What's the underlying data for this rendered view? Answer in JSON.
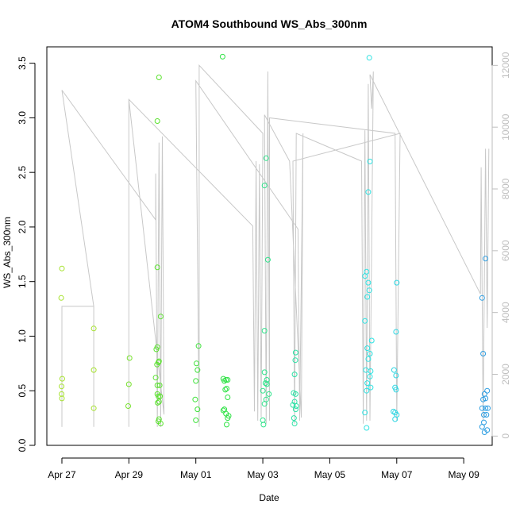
{
  "chart_data": {
    "type": "scatter",
    "title": "ATOM4 Southbound WS_Abs_300nm",
    "xlabel": "Date",
    "ylabel": "WS_Abs_300nm",
    "x_tick_labels": [
      "Apr 27",
      "Apr 29",
      "May 01",
      "May 03",
      "May 05",
      "May 07",
      "May 09"
    ],
    "x_ticks_day": [
      0,
      2,
      4,
      6,
      8,
      10,
      12
    ],
    "x_axis_unit": "days since Apr 27",
    "xlim": [
      -0.45,
      12.85
    ],
    "ylim": [
      0,
      3.65
    ],
    "y_ticks": [
      0.0,
      0.5,
      1.0,
      1.5,
      2.0,
      2.5,
      3.0,
      3.5
    ],
    "y_tick_labels": [
      "0.0",
      "0.5",
      "1.0",
      "1.5",
      "2.0",
      "2.5",
      "3.0",
      "3.5"
    ],
    "right_axis": {
      "ylim": [
        -300,
        12600
      ],
      "ticks": [
        0,
        2000,
        4000,
        6000,
        8000,
        10000,
        12000
      ],
      "tick_labels": [
        "0",
        "2000",
        "4000",
        "6000",
        "8000",
        "10000",
        "12000"
      ],
      "color": "#bebebe"
    },
    "points_day_value": [
      [
        0.0,
        1.62,
        "#a6e22e"
      ],
      [
        -0.02,
        1.35,
        "#a6e22e"
      ],
      [
        0.01,
        0.61,
        "#a6e22e"
      ],
      [
        -0.01,
        0.54,
        "#a6e22e"
      ],
      [
        -0.01,
        0.47,
        "#a6e22e"
      ],
      [
        0.0,
        0.43,
        "#a6e22e"
      ],
      [
        0.95,
        1.07,
        "#a6e22e"
      ],
      [
        0.95,
        0.69,
        "#a6e22e"
      ],
      [
        0.95,
        0.34,
        "#a6e22e"
      ],
      [
        2.02,
        0.8,
        "#78e22e"
      ],
      [
        2.0,
        0.56,
        "#78e22e"
      ],
      [
        1.98,
        0.36,
        "#78e22e"
      ],
      [
        2.85,
        2.97,
        "#5ae22e"
      ],
      [
        2.9,
        3.37,
        "#5ae22e"
      ],
      [
        2.85,
        1.63,
        "#5ae22e"
      ],
      [
        2.95,
        1.18,
        "#5ae22e"
      ],
      [
        2.85,
        0.9,
        "#5ae22e"
      ],
      [
        2.82,
        0.88,
        "#5ae22e"
      ],
      [
        2.9,
        0.77,
        "#5ae22e"
      ],
      [
        2.88,
        0.76,
        "#5ae22e"
      ],
      [
        2.84,
        0.74,
        "#5ae22e"
      ],
      [
        2.8,
        0.62,
        "#5ae22e"
      ],
      [
        2.85,
        0.55,
        "#5ae22e"
      ],
      [
        2.92,
        0.55,
        "#5ae22e"
      ],
      [
        2.85,
        0.47,
        "#5ae22e"
      ],
      [
        2.88,
        0.45,
        "#5ae22e"
      ],
      [
        2.93,
        0.45,
        "#5ae22e"
      ],
      [
        2.9,
        0.4,
        "#5ae22e"
      ],
      [
        2.86,
        0.39,
        "#5ae22e"
      ],
      [
        2.9,
        0.24,
        "#5ae22e"
      ],
      [
        2.88,
        0.22,
        "#5ae22e"
      ],
      [
        2.95,
        0.2,
        "#5ae22e"
      ],
      [
        4.08,
        0.91,
        "#3ee23a"
      ],
      [
        4.02,
        0.75,
        "#3ee23a"
      ],
      [
        4.05,
        0.69,
        "#3ee23a"
      ],
      [
        4.0,
        0.59,
        "#3ee23a"
      ],
      [
        3.98,
        0.42,
        "#3ee23a"
      ],
      [
        4.05,
        0.33,
        "#3ee23a"
      ],
      [
        4.0,
        0.23,
        "#3ee23a"
      ],
      [
        4.8,
        3.56,
        "#2ee244"
      ],
      [
        4.82,
        0.61,
        "#2ee244"
      ],
      [
        4.9,
        0.6,
        "#2ee244"
      ],
      [
        4.85,
        0.59,
        "#2ee244"
      ],
      [
        4.95,
        0.6,
        "#2ee244"
      ],
      [
        4.92,
        0.52,
        "#2ee244"
      ],
      [
        4.88,
        0.51,
        "#2ee244"
      ],
      [
        4.95,
        0.44,
        "#2ee244"
      ],
      [
        4.85,
        0.33,
        "#2ee244"
      ],
      [
        4.82,
        0.32,
        "#2ee244"
      ],
      [
        4.9,
        0.29,
        "#2ee244"
      ],
      [
        4.98,
        0.27,
        "#2ee244"
      ],
      [
        4.95,
        0.25,
        "#2ee244"
      ],
      [
        4.92,
        0.19,
        "#2ee244"
      ],
      [
        6.1,
        2.63,
        "#2ee28a"
      ],
      [
        6.05,
        2.38,
        "#2ee28a"
      ],
      [
        6.15,
        1.7,
        "#2ee28a"
      ],
      [
        6.05,
        1.05,
        "#2ee28a"
      ],
      [
        6.05,
        0.67,
        "#2ee28a"
      ],
      [
        6.12,
        0.6,
        "#2ee28a"
      ],
      [
        6.08,
        0.57,
        "#2ee28a"
      ],
      [
        6.12,
        0.56,
        "#2ee28a"
      ],
      [
        6.0,
        0.5,
        "#2ee28a"
      ],
      [
        6.18,
        0.47,
        "#2ee28a"
      ],
      [
        6.1,
        0.42,
        "#2ee28a"
      ],
      [
        6.05,
        0.38,
        "#2ee28a"
      ],
      [
        6.0,
        0.23,
        "#2ee28a"
      ],
      [
        6.02,
        0.19,
        "#2ee28a"
      ],
      [
        6.98,
        0.85,
        "#2ee2a6"
      ],
      [
        6.97,
        0.78,
        "#2ee2a6"
      ],
      [
        6.95,
        0.65,
        "#2ee2a6"
      ],
      [
        6.92,
        0.48,
        "#2ee2a6"
      ],
      [
        6.98,
        0.47,
        "#2ee2a6"
      ],
      [
        6.95,
        0.4,
        "#2ee2a6"
      ],
      [
        6.9,
        0.37,
        "#2ee2a6"
      ],
      [
        7.0,
        0.36,
        "#2ee2a6"
      ],
      [
        6.98,
        0.33,
        "#2ee2a6"
      ],
      [
        6.93,
        0.25,
        "#2ee2a6"
      ],
      [
        6.95,
        0.2,
        "#2ee2a6"
      ],
      [
        9.18,
        3.55,
        "#2ee2e2"
      ],
      [
        9.2,
        2.6,
        "#2ee2e2"
      ],
      [
        9.15,
        2.32,
        "#2ee2e2"
      ],
      [
        9.1,
        1.59,
        "#2ee2e2"
      ],
      [
        9.05,
        1.55,
        "#2ee2e2"
      ],
      [
        9.15,
        1.49,
        "#2ee2e2"
      ],
      [
        9.18,
        1.42,
        "#2ee2e2"
      ],
      [
        9.12,
        1.36,
        "#2ee2e2"
      ],
      [
        9.05,
        1.14,
        "#2ee2e2"
      ],
      [
        9.25,
        0.96,
        "#2ee2e2"
      ],
      [
        9.12,
        0.89,
        "#2ee2e2"
      ],
      [
        9.2,
        0.84,
        "#2ee2e2"
      ],
      [
        9.15,
        0.79,
        "#2ee2e2"
      ],
      [
        9.08,
        0.69,
        "#2ee2e2"
      ],
      [
        9.22,
        0.68,
        "#2ee2e2"
      ],
      [
        9.2,
        0.63,
        "#2ee2e2"
      ],
      [
        9.12,
        0.57,
        "#2ee2e2"
      ],
      [
        9.22,
        0.53,
        "#2ee2e2"
      ],
      [
        9.1,
        0.5,
        "#2ee2e2"
      ],
      [
        9.05,
        0.3,
        "#2ee2e2"
      ],
      [
        9.1,
        0.16,
        "#2ee2e2"
      ],
      [
        10.0,
        1.49,
        "#2ed6e2"
      ],
      [
        9.98,
        1.04,
        "#2ed6e2"
      ],
      [
        9.92,
        0.69,
        "#2ed6e2"
      ],
      [
        9.98,
        0.64,
        "#2ed6e2"
      ],
      [
        9.95,
        0.53,
        "#2ed6e2"
      ],
      [
        9.98,
        0.51,
        "#2ed6e2"
      ],
      [
        9.9,
        0.31,
        "#2ed6e2"
      ],
      [
        9.95,
        0.3,
        "#2ed6e2"
      ],
      [
        10.0,
        0.28,
        "#2ed6e2"
      ],
      [
        9.95,
        0.24,
        "#2ed6e2"
      ],
      [
        12.65,
        1.71,
        "#2e9ee2"
      ],
      [
        12.55,
        1.35,
        "#2e9ee2"
      ],
      [
        12.58,
        0.84,
        "#2e9ee2"
      ],
      [
        12.7,
        0.5,
        "#2e9ee2"
      ],
      [
        12.62,
        0.47,
        "#2e9ee2"
      ],
      [
        12.65,
        0.43,
        "#2e9ee2"
      ],
      [
        12.58,
        0.42,
        "#2e9ee2"
      ],
      [
        12.55,
        0.34,
        "#2e9ee2"
      ],
      [
        12.65,
        0.34,
        "#2e9ee2"
      ],
      [
        12.72,
        0.34,
        "#2e9ee2"
      ],
      [
        12.6,
        0.28,
        "#2e9ee2"
      ],
      [
        12.68,
        0.28,
        "#2e9ee2"
      ],
      [
        12.6,
        0.21,
        "#2e9ee2"
      ],
      [
        12.55,
        0.17,
        "#2e9ee2"
      ],
      [
        12.62,
        0.12,
        "#2e9ee2"
      ],
      [
        12.7,
        0.14,
        "#2e9ee2"
      ]
    ],
    "line_day_right": [
      [
        0.0,
        4200
      ],
      [
        0.0,
        300
      ],
      [
        0.0,
        4200
      ],
      [
        0.95,
        4200
      ],
      [
        0.95,
        300
      ],
      [
        0.95,
        4200
      ],
      [
        0.0,
        11200
      ],
      [
        2.8,
        7000
      ],
      [
        2.8,
        8500
      ],
      [
        2.85,
        300
      ],
      [
        2.9,
        9500
      ],
      [
        2.95,
        300
      ],
      [
        3.0,
        9700
      ],
      [
        3.05,
        700
      ],
      [
        2.0,
        10900
      ],
      [
        2.0,
        300
      ],
      [
        2.0,
        10900
      ],
      [
        5.7,
        6800
      ],
      [
        5.75,
        800
      ],
      [
        5.8,
        8900
      ],
      [
        5.85,
        500
      ],
      [
        5.9,
        8800
      ],
      [
        5.95,
        600
      ],
      [
        6.0,
        9800
      ],
      [
        4.1,
        12000
      ],
      [
        4.1,
        300
      ],
      [
        4.0,
        11500
      ],
      [
        7.05,
        6700
      ],
      [
        7.1,
        500
      ],
      [
        7.2,
        9800
      ],
      [
        7.15,
        600
      ],
      [
        6.8,
        8900
      ],
      [
        6.05,
        10400
      ],
      [
        6.1,
        400
      ],
      [
        6.15,
        11800
      ],
      [
        6.2,
        500
      ],
      [
        6.2,
        10300
      ],
      [
        9.95,
        9800
      ],
      [
        10.0,
        500
      ],
      [
        10.1,
        9800
      ],
      [
        6.9,
        8900
      ],
      [
        6.95,
        400
      ],
      [
        7.0,
        9800
      ],
      [
        8.95,
        8900
      ],
      [
        9.0,
        400
      ],
      [
        9.05,
        9900
      ],
      [
        9.1,
        500
      ],
      [
        9.15,
        11400
      ],
      [
        9.2,
        500
      ],
      [
        9.3,
        11800
      ],
      [
        9.25,
        10600
      ],
      [
        9.2,
        11700
      ],
      [
        12.5,
        4600
      ],
      [
        12.52,
        8700
      ],
      [
        12.58,
        500
      ],
      [
        12.65,
        9300
      ],
      [
        12.7,
        3500
      ],
      [
        12.75,
        9300
      ]
    ]
  }
}
